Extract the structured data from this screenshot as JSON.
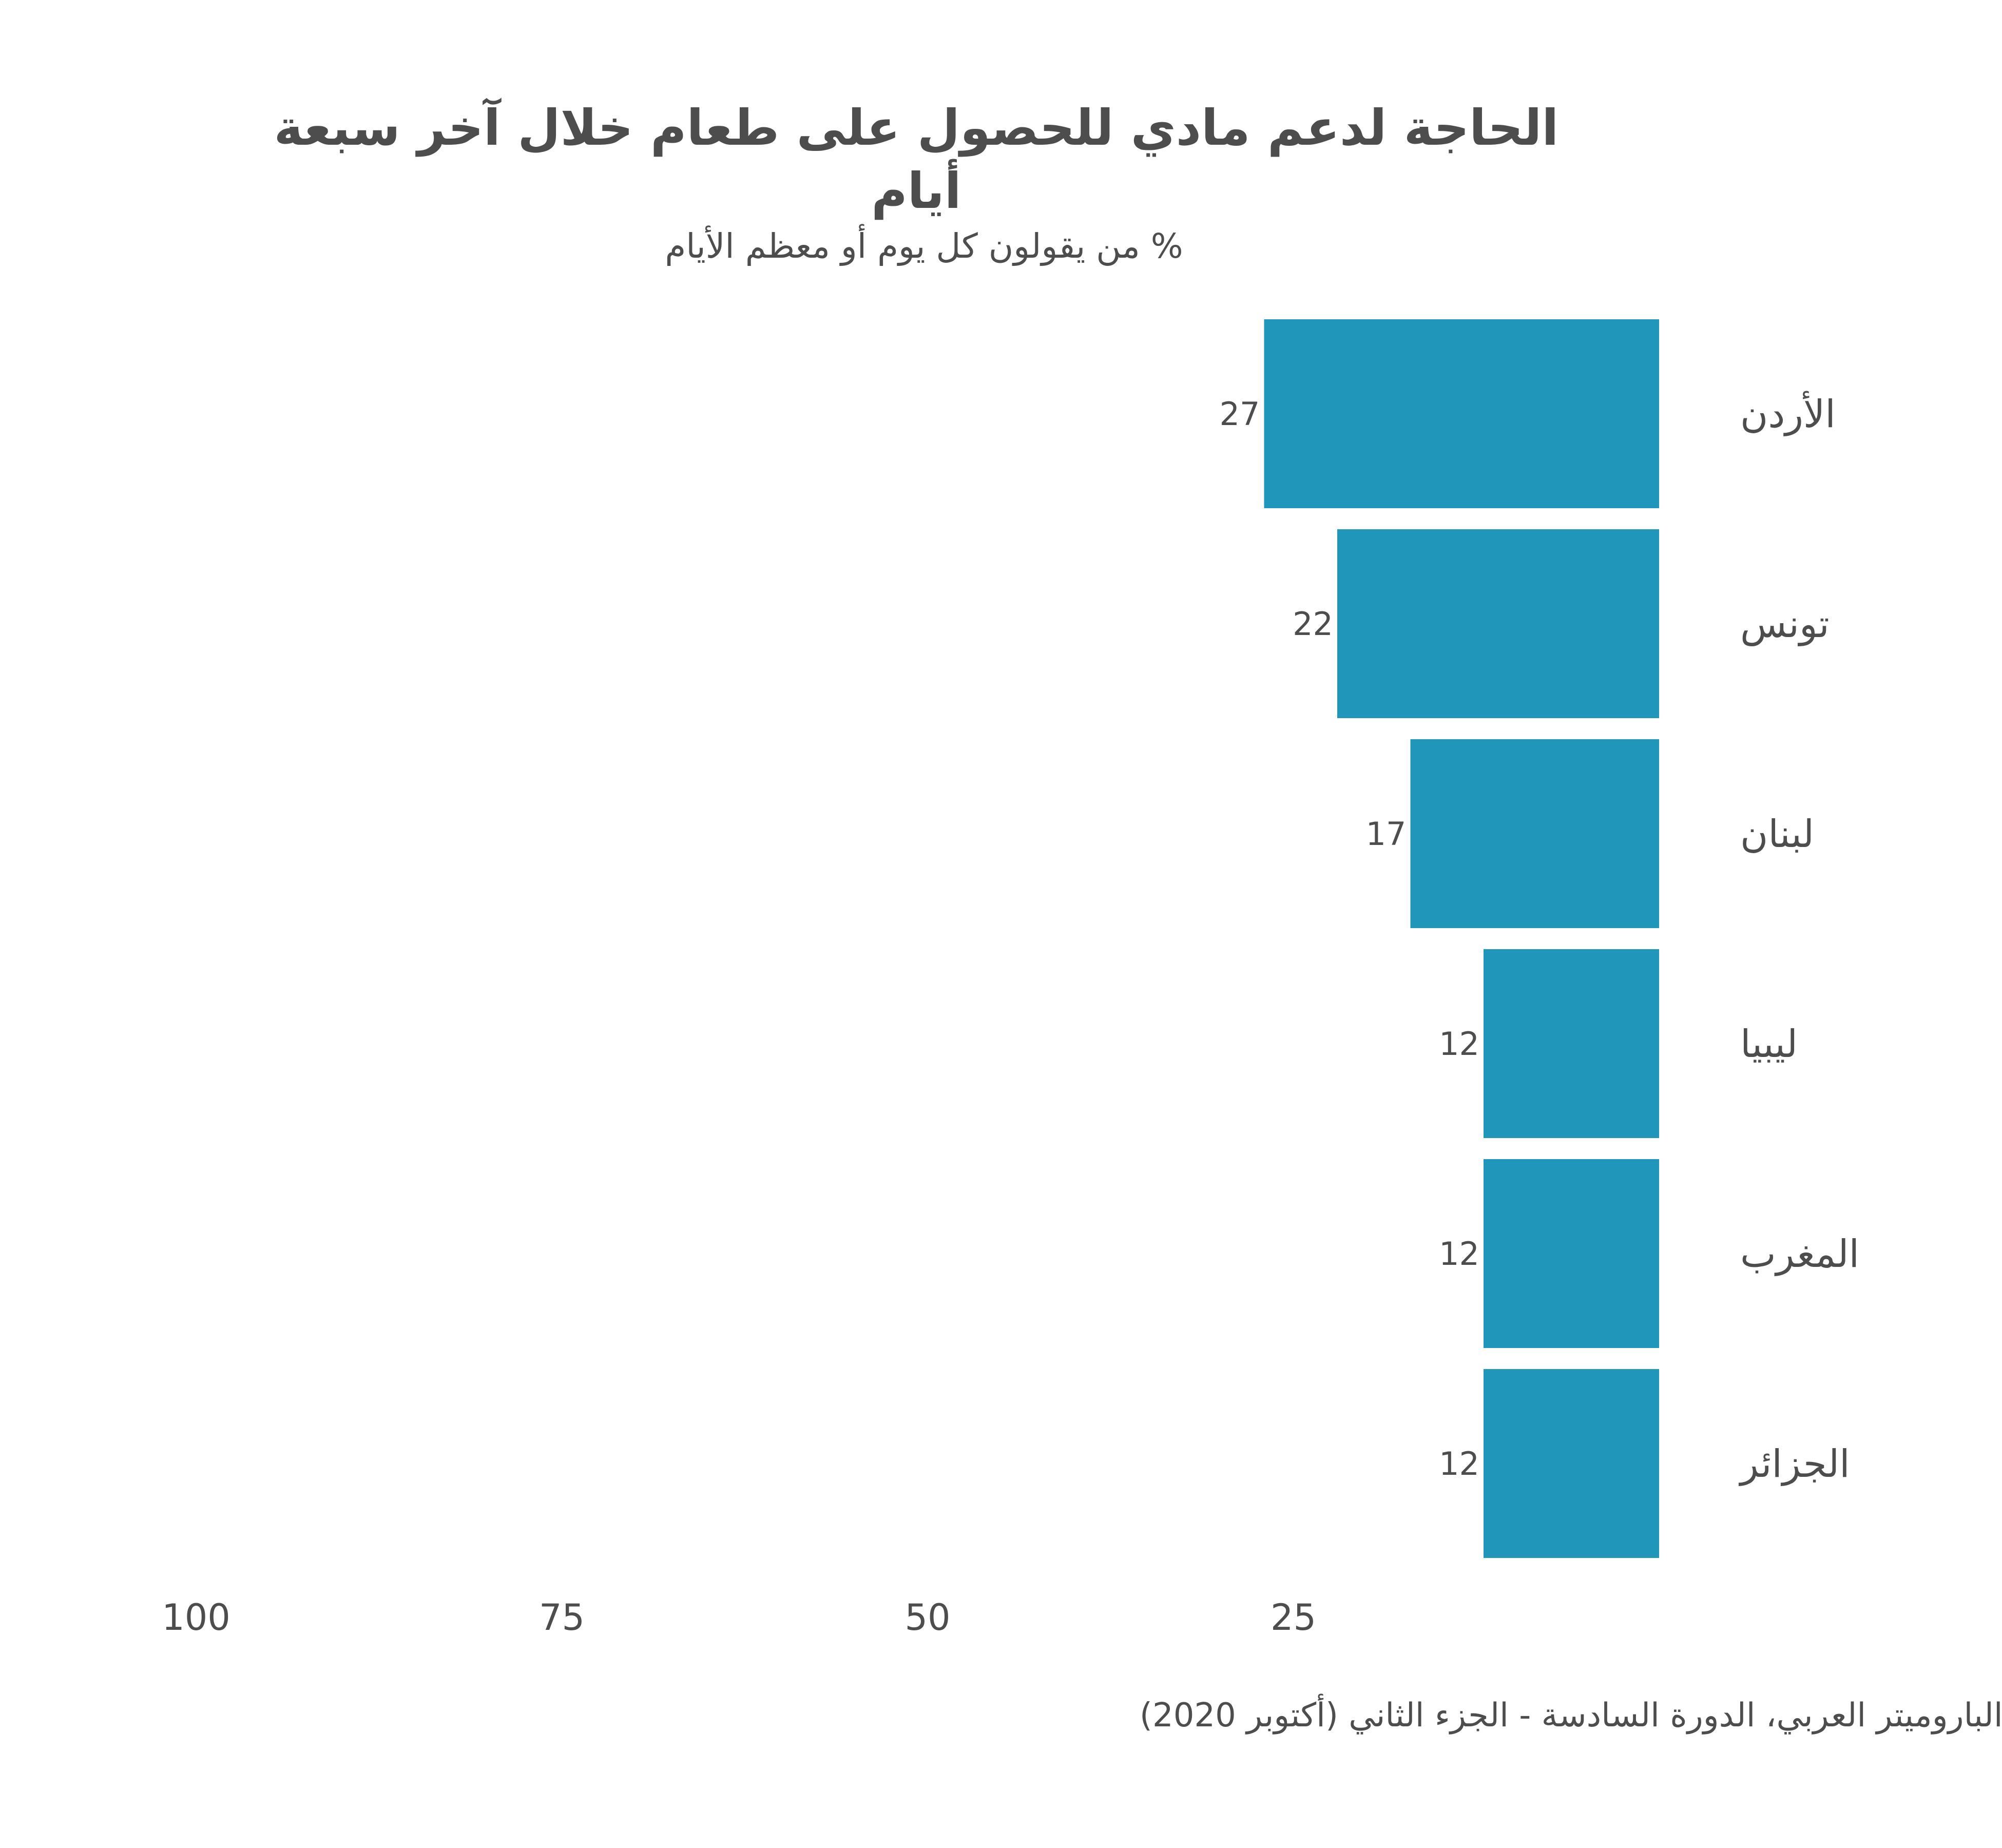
{
  "chart_data": {
    "type": "bar",
    "orientation": "horizontal",
    "x_reversed": true,
    "title": "الحاجة لدعم مادي للحصول على طعام خلال آخر سبعة أيام",
    "title_lines": [
      "الحاجة لدعم مادي للحصول على طعام خلال آخر سبعة",
      "أيام"
    ],
    "subtitle": "% من يقولون كل يوم أو معظم الأيام",
    "categories": [
      "الأردن",
      "تونس",
      "لبنان",
      "ليبيا",
      "المغرب",
      "الجزائر"
    ],
    "values": [
      27,
      22,
      17,
      12,
      12,
      12
    ],
    "value_labels": [
      "27",
      "22",
      "17",
      "12",
      "12",
      "12"
    ],
    "xlim": [
      0,
      100
    ],
    "x_ticks": [
      100,
      75,
      50,
      25
    ],
    "x_tick_labels": [
      "100",
      "75",
      "50",
      "25"
    ],
    "grid": false,
    "bar_color": "#2196bb",
    "source": "الباروميتر العربي، الدورة السادسة - الجزء الثاني (أكتوبر 2020)"
  }
}
